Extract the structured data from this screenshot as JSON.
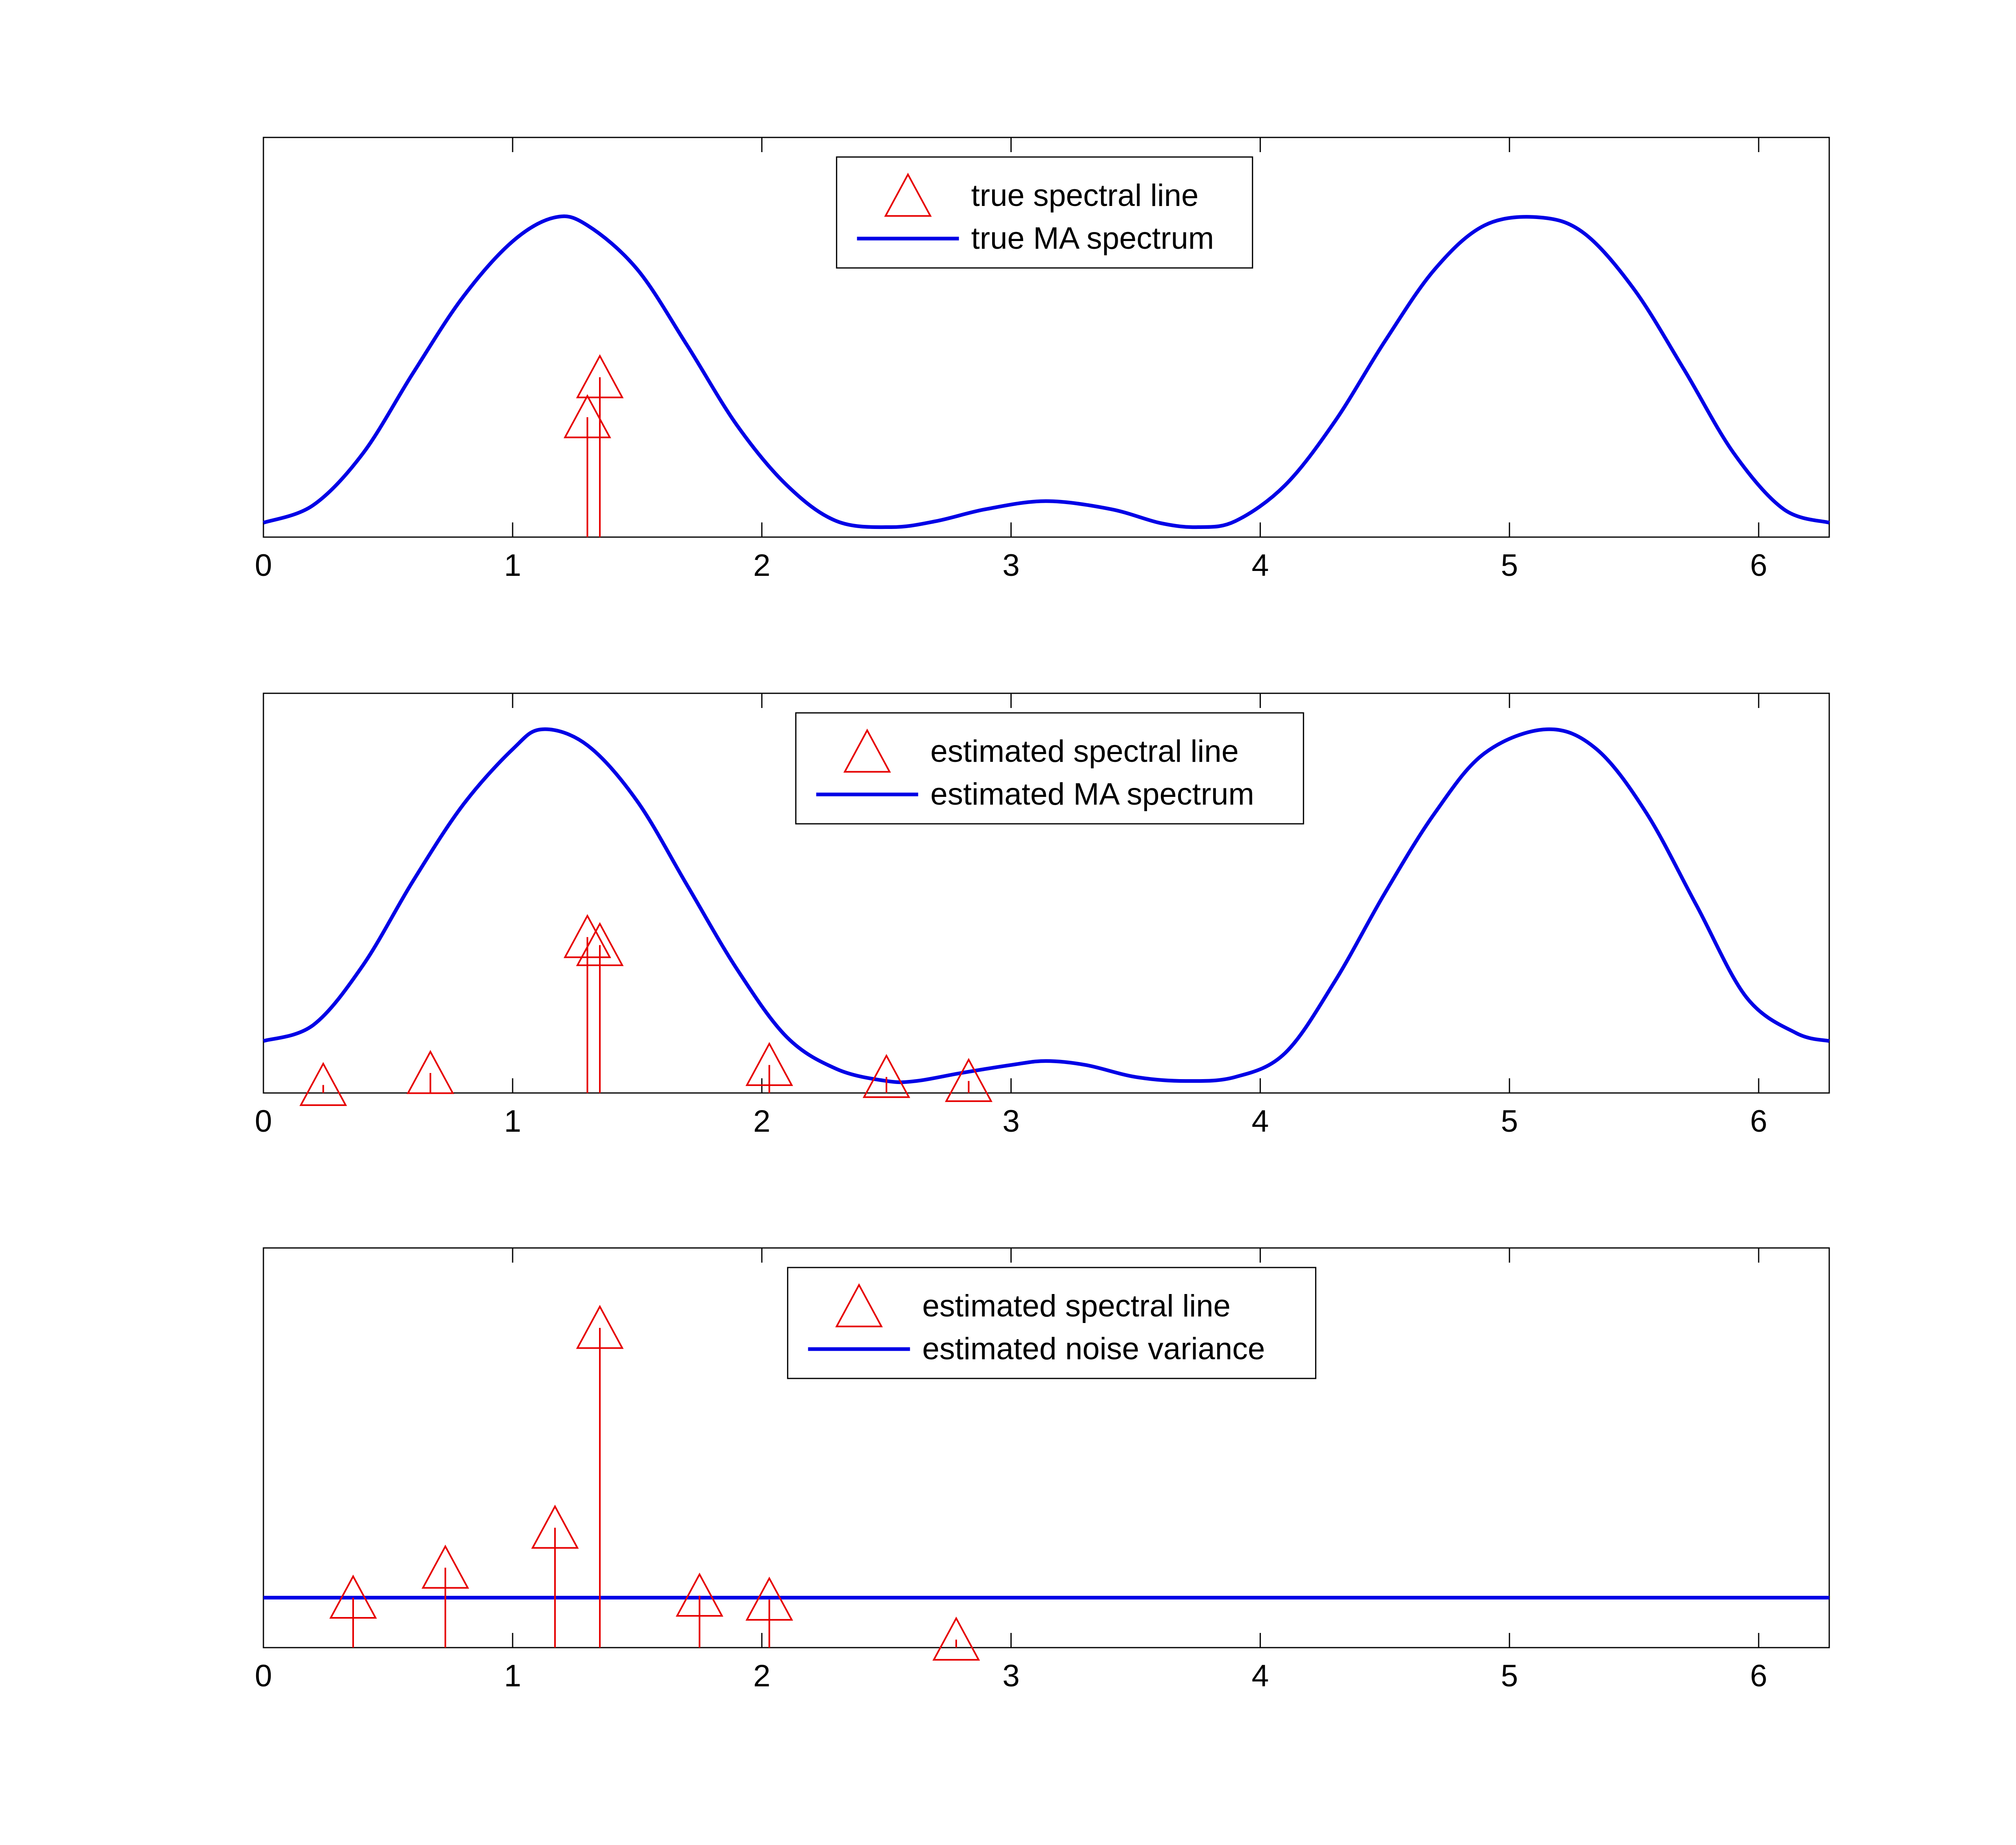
{
  "colors": {
    "line": "#0000e6",
    "stem": "#e60000",
    "axis": "#000000",
    "background": "#ffffff"
  },
  "chart_data": [
    {
      "type": "line",
      "title": "",
      "xlabel": "",
      "ylabel": "",
      "xlim": [
        0,
        6.2832
      ],
      "ylim": [
        0,
        1.0
      ],
      "xticks": [
        0,
        1,
        2,
        3,
        4,
        5,
        6
      ],
      "yticks_shown": false,
      "grid": false,
      "legend_position": "top-center",
      "series": [
        {
          "name": "true MA spectrum",
          "kind": "line",
          "x": [
            0.0,
            0.2,
            0.4,
            0.6,
            0.8,
            1.0,
            1.17,
            1.3,
            1.5,
            1.7,
            1.9,
            2.1,
            2.3,
            2.52,
            2.7,
            2.9,
            3.14,
            3.4,
            3.6,
            3.75,
            3.9,
            4.1,
            4.3,
            4.5,
            4.7,
            4.9,
            5.12,
            5.3,
            5.5,
            5.7,
            5.9,
            6.1,
            6.2832
          ],
          "y": [
            0.036,
            0.08,
            0.21,
            0.41,
            0.6,
            0.74,
            0.8,
            0.78,
            0.67,
            0.48,
            0.28,
            0.13,
            0.04,
            0.025,
            0.04,
            0.07,
            0.09,
            0.07,
            0.035,
            0.025,
            0.04,
            0.13,
            0.29,
            0.49,
            0.67,
            0.78,
            0.8,
            0.76,
            0.62,
            0.42,
            0.21,
            0.07,
            0.036
          ]
        },
        {
          "name": "true spectral line",
          "kind": "stem",
          "x": [
            1.3,
            1.35
          ],
          "y": [
            0.3,
            0.4
          ]
        }
      ]
    },
    {
      "type": "line",
      "title": "",
      "xlabel": "",
      "ylabel": "",
      "xlim": [
        0,
        6.2832
      ],
      "ylim": [
        0,
        1.0
      ],
      "xticks": [
        0,
        1,
        2,
        3,
        4,
        5,
        6
      ],
      "yticks_shown": false,
      "grid": false,
      "legend_position": "top-center",
      "series": [
        {
          "name": "estimated MA spectrum",
          "kind": "line",
          "x": [
            0.0,
            0.2,
            0.4,
            0.6,
            0.8,
            1.0,
            1.12,
            1.3,
            1.5,
            1.7,
            1.9,
            2.1,
            2.3,
            2.5,
            2.62,
            2.8,
            3.0,
            3.14,
            3.3,
            3.5,
            3.7,
            3.9,
            4.1,
            4.3,
            4.5,
            4.7,
            4.9,
            5.15,
            5.35,
            5.55,
            5.75,
            5.95,
            6.15,
            6.2832
          ],
          "y": [
            0.13,
            0.17,
            0.32,
            0.53,
            0.72,
            0.86,
            0.91,
            0.87,
            0.73,
            0.52,
            0.31,
            0.14,
            0.06,
            0.03,
            0.03,
            0.05,
            0.07,
            0.08,
            0.07,
            0.04,
            0.03,
            0.04,
            0.1,
            0.28,
            0.5,
            0.7,
            0.85,
            0.91,
            0.86,
            0.7,
            0.47,
            0.24,
            0.15,
            0.13
          ]
        },
        {
          "name": "estimated spectral line",
          "kind": "stem",
          "x": [
            0.24,
            0.67,
            1.3,
            1.35,
            2.03,
            2.5,
            2.83
          ],
          "y": [
            0.02,
            0.05,
            0.39,
            0.37,
            0.07,
            0.04,
            0.03
          ]
        }
      ]
    },
    {
      "type": "line",
      "title": "",
      "xlabel": "",
      "ylabel": "",
      "xlim": [
        0,
        6.2832
      ],
      "ylim": [
        0,
        1.0
      ],
      "xticks": [
        0,
        1,
        2,
        3,
        4,
        5,
        6
      ],
      "yticks_shown": false,
      "grid": false,
      "legend_position": "top-center",
      "series": [
        {
          "name": "estimated noise variance",
          "kind": "hline",
          "x": [
            0,
            6.2832
          ],
          "y": [
            0.125,
            0.125
          ]
        },
        {
          "name": "estimated spectral line",
          "kind": "stem",
          "x": [
            0.36,
            0.73,
            1.17,
            1.35,
            1.75,
            2.03,
            2.78
          ],
          "y": [
            0.125,
            0.2,
            0.3,
            0.8,
            0.13,
            0.12,
            0.02
          ]
        }
      ]
    }
  ]
}
